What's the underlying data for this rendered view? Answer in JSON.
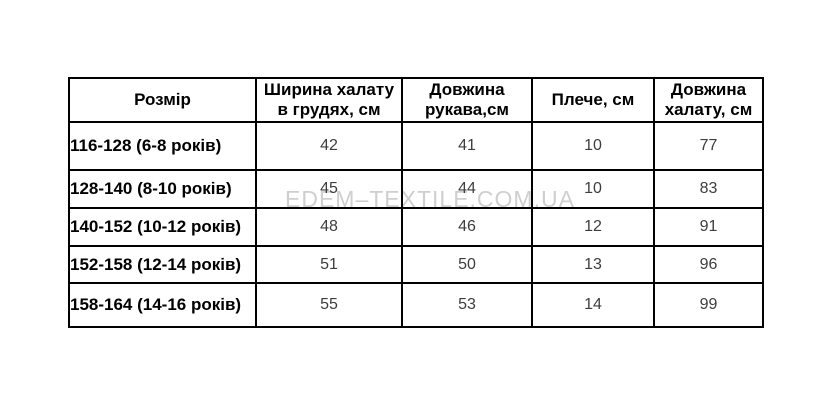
{
  "watermark": {
    "text": "EDEM–TEXTILE.COM.UA",
    "color": "#cfcfcf"
  },
  "size_table": {
    "columns": [
      "Розмір",
      "Ширина халату\nв грудях, см",
      "Довжина\nрукава,см",
      "Плече, см",
      "Довжина\nхалату, см"
    ],
    "rows": [
      {
        "size": "116-128 (6-8 років)",
        "values": [
          "42",
          "41",
          "10",
          "77"
        ]
      },
      {
        "size": "128-140 (8-10 років)",
        "values": [
          "45",
          "44",
          "10",
          "83"
        ]
      },
      {
        "size": "140-152 (10-12 років)",
        "values": [
          "48",
          "46",
          "12",
          "91"
        ]
      },
      {
        "size": "152-158 (12-14 років)",
        "values": [
          "51",
          "50",
          "13",
          "96"
        ]
      },
      {
        "size": "158-164 (14-16 років)",
        "values": [
          "55",
          "53",
          "14",
          "99"
        ]
      }
    ],
    "border_color": "#000000",
    "header_text_color": "#000000",
    "value_text_color": "#3d3d3d"
  }
}
